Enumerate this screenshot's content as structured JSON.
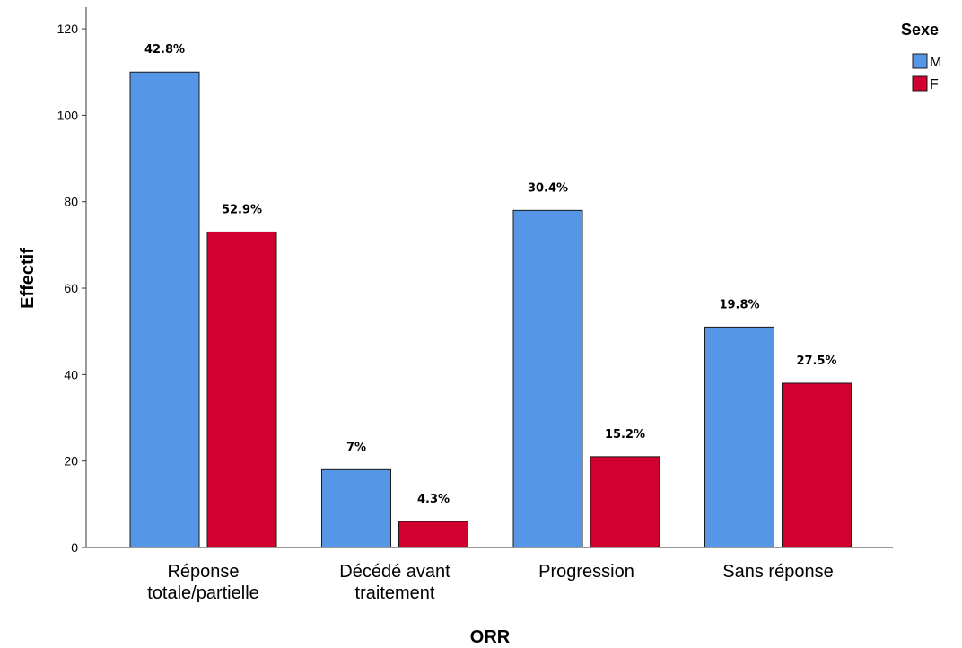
{
  "chart_data": {
    "type": "bar",
    "categories": [
      [
        "Réponse",
        "totale/partielle"
      ],
      [
        "Décédé avant",
        "traitement"
      ],
      [
        "Progression"
      ],
      [
        "Sans réponse"
      ]
    ],
    "series": [
      {
        "name": "M",
        "color": "#5596E6",
        "values": [
          110,
          18,
          78,
          51
        ],
        "labels": [
          "42.8%",
          "7%",
          "30.4%",
          "19.8%"
        ]
      },
      {
        "name": "F",
        "color": "#D2002F",
        "values": [
          73,
          6,
          21,
          38
        ],
        "labels": [
          "52.9%",
          "4.3%",
          "15.2%",
          "27.5%"
        ]
      }
    ],
    "xlabel": "ORR",
    "ylabel": "Effectif",
    "ylim": [
      0,
      125
    ],
    "yticks": [
      0,
      20,
      40,
      60,
      80,
      100,
      120
    ],
    "grid": false,
    "legend": {
      "title": "Sexe",
      "position": "top-right"
    }
  }
}
